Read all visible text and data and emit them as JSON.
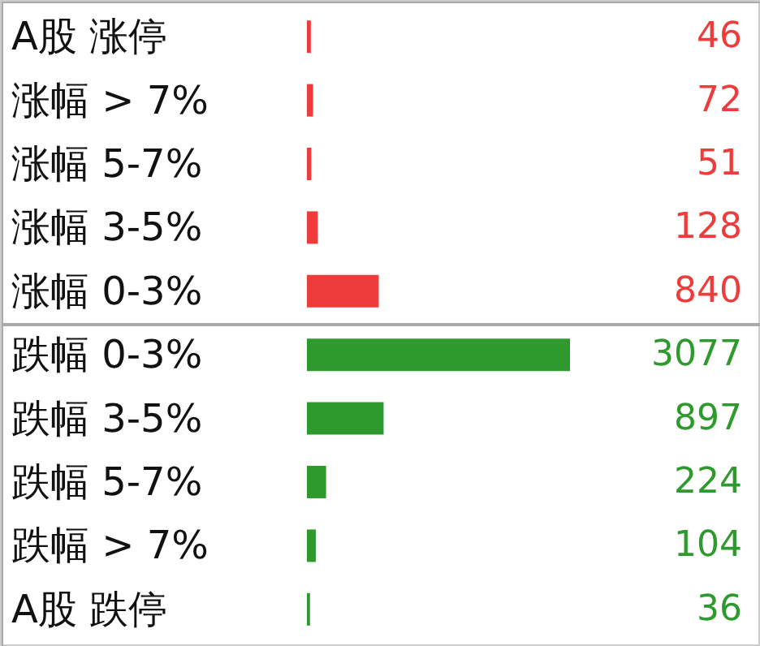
{
  "chart_data": {
    "type": "bar",
    "orientation": "horizontal",
    "categories": [
      "A股 涨停",
      "涨幅 > 7%",
      "涨幅 5-7%",
      "涨幅 3-5%",
      "涨幅 0-3%",
      "跌幅 0-3%",
      "跌幅 3-5%",
      "跌幅 5-7%",
      "跌幅 > 7%",
      "A股 跌停"
    ],
    "values": [
      46,
      72,
      51,
      128,
      840,
      3077,
      897,
      224,
      104,
      36
    ],
    "colors": [
      "#ee3b3b",
      "#ee3b3b",
      "#ee3b3b",
      "#ee3b3b",
      "#ee3b3b",
      "#2e9a2e",
      "#2e9a2e",
      "#2e9a2e",
      "#2e9a2e",
      "#2e9a2e"
    ],
    "data_labels": true
  }
}
